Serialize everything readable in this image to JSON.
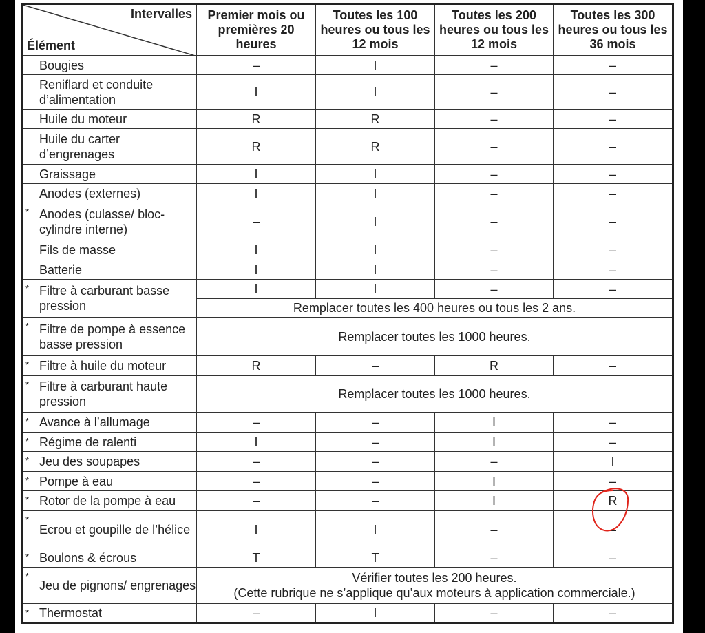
{
  "header": {
    "corner_top": "Intervalles",
    "corner_bottom": "Élément",
    "columns": [
      "Premier mois ou premières 20 heures",
      "Toutes les 100 heures ou tous les 12 mois",
      "Toutes les 200 heures ou tous les 12 mois",
      "Toutes les 300 heures ou tous les 36 mois"
    ]
  },
  "rows": [
    {
      "star": false,
      "label": "Bougies",
      "values": [
        "–",
        "I",
        "–",
        "–"
      ],
      "h": 28
    },
    {
      "star": false,
      "label": "Reniflard et conduite d’alimentation",
      "values": [
        "I",
        "I",
        "–",
        "–"
      ],
      "h": 50
    },
    {
      "star": false,
      "label": "Huile du moteur",
      "values": [
        "R",
        "R",
        "–",
        "–"
      ],
      "h": 28
    },
    {
      "star": false,
      "label": "Huile du carter d’engrenages",
      "values": [
        "R",
        "R",
        "–",
        "–"
      ],
      "h": 52
    },
    {
      "star": false,
      "label": "Graissage",
      "values": [
        "I",
        "I",
        "–",
        "–"
      ],
      "h": 28
    },
    {
      "star": false,
      "label": "Anodes (externes)",
      "values": [
        "I",
        "I",
        "–",
        "–"
      ],
      "h": 28
    },
    {
      "star": true,
      "label": "Anodes (culasse/ bloc-cylindre interne)",
      "values": [
        "–",
        "I",
        "–",
        "–"
      ],
      "h": 54
    },
    {
      "star": false,
      "label": "Fils de masse",
      "values": [
        "I",
        "I",
        "–",
        "–"
      ],
      "h": 29
    },
    {
      "star": false,
      "label": "Batterie",
      "values": [
        "I",
        "I",
        "–",
        "–"
      ],
      "h": 28
    },
    {
      "star": true,
      "label": "Filtre à carburant basse pression",
      "values": [
        "I",
        "I",
        "–",
        "–"
      ],
      "note": "Remplacer toutes les 400 heures ou tous les 2 ans.",
      "h": 55
    },
    {
      "star": true,
      "label": "Filtre de pompe à essence basse pression",
      "note": "Remplacer toutes les 1000 heures.",
      "h": 56
    },
    {
      "star": true,
      "label": "Filtre à huile du moteur",
      "values": [
        "R",
        "–",
        "R",
        "–"
      ],
      "h": 29
    },
    {
      "star": true,
      "label": "Filtre à carburant haute pression",
      "note": "Remplacer toutes les 1000 heures.",
      "h": 53
    },
    {
      "star": true,
      "label": "Avance à l’allumage",
      "values": [
        "–",
        "–",
        "I",
        "–"
      ],
      "h": 29
    },
    {
      "star": true,
      "label": "Régime de ralenti",
      "values": [
        "I",
        "–",
        "I",
        "–"
      ],
      "h": 28
    },
    {
      "star": true,
      "label": "Jeu des soupapes",
      "values": [
        "–",
        "–",
        "–",
        "I"
      ],
      "h": 29
    },
    {
      "star": true,
      "label": "Pompe à eau",
      "values": [
        "–",
        "–",
        "I",
        "–"
      ],
      "h": 28
    },
    {
      "star": true,
      "label": "Rotor de la pompe à eau",
      "values": [
        "–",
        "–",
        "I",
        "R"
      ],
      "h": 29
    },
    {
      "star": true,
      "label": "Ecrou et goupille de l’hélice",
      "values": [
        "I",
        "I",
        "–",
        "–"
      ],
      "h": 54
    },
    {
      "star": true,
      "label": "Boulons & écrous",
      "values": [
        "T",
        "T",
        "–",
        "–"
      ],
      "h": 28
    },
    {
      "star": true,
      "label": "Jeu de pignons/ engrenages",
      "note": "Vérifier toutes les 200 heures.\n(Cette rubrique ne s’applique qu’aux moteurs à application commerciale.)",
      "h": 53
    },
    {
      "star": true,
      "label": "Thermostat",
      "values": [
        "–",
        "I",
        "–",
        "–"
      ],
      "h": 28
    }
  ],
  "annotation": {
    "color": "#e0241b",
    "shape": "hand-drawn circle around Rotor de la pompe à eau / 300 h value"
  }
}
